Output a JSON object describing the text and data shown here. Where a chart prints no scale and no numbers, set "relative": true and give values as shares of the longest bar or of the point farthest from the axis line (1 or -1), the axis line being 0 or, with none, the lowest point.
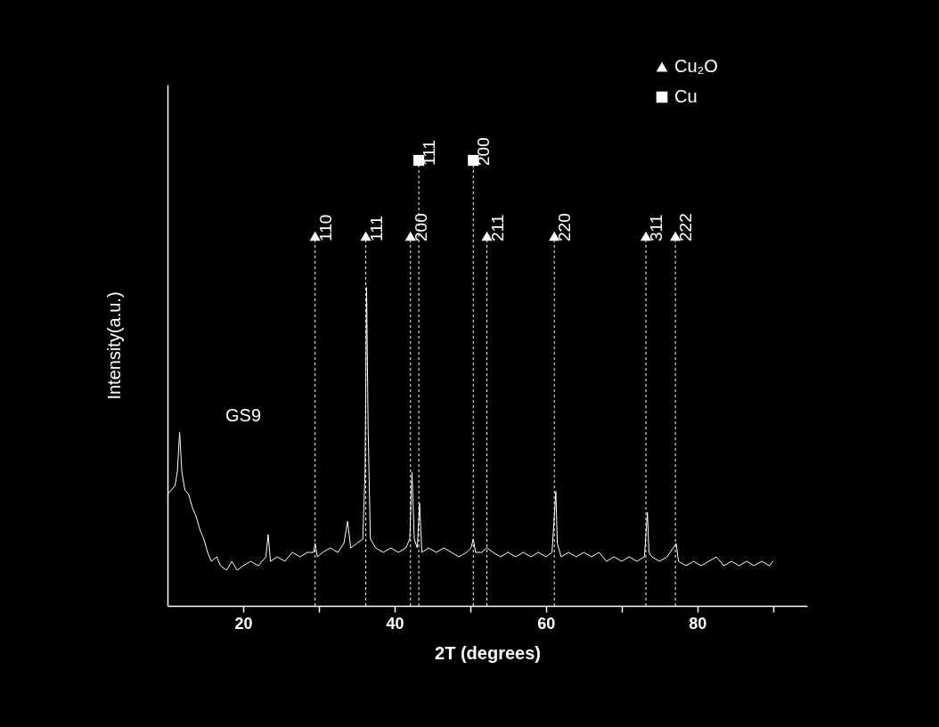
{
  "chart_data": {
    "type": "line",
    "relative": true,
    "xlabel": "2T (degrees)",
    "ylabel": "Intensity(a.u.)",
    "xlim": [
      10,
      94.5
    ],
    "xticks": [
      20,
      {
        "value": 30,
        "label": null
      },
      40,
      {
        "value": 50,
        "label": null
      },
      60,
      {
        "value": 70,
        "label": null
      },
      80,
      {
        "value": 90,
        "label": null
      }
    ],
    "tick_labels": "x",
    "legend": "top right",
    "annotations": [
      "GS9",
      {
        "text": "110",
        "x": 29.5,
        "y": 0.83
      },
      {
        "text": "111",
        "x": 36.2,
        "y": 0.83
      },
      {
        "text": "200",
        "x": 42.1,
        "y": 0.83
      },
      {
        "text": "211",
        "x": 52.2,
        "y": 0.83
      },
      {
        "text": "220",
        "x": 61.1,
        "y": 0.83
      },
      {
        "text": "311",
        "x": 73.2,
        "y": 0.83
      },
      {
        "text": "222",
        "x": 77.1,
        "y": 0.83
      },
      {
        "text": "111",
        "x": 43.2,
        "y": 1
      },
      {
        "text": "200",
        "x": 50.4,
        "y": 1
      }
    ],
    "x": [
      10,
      10.5,
      11,
      11.3,
      11.6,
      11.9,
      12.3,
      12.8,
      13.3,
      13.8,
      14.3,
      14.8,
      15.3,
      15.8,
      16.5,
      17,
      17.8,
      18.5,
      19.2,
      20,
      21,
      22,
      23,
      23.3,
      23.6,
      24.5,
      25.5,
      26.5,
      27.5,
      28.5,
      29.3,
      29.5,
      29.8,
      30.5,
      31.5,
      32.5,
      33.3,
      33.8,
      34.2,
      35,
      35.8,
      36.1,
      36.3,
      36.5,
      36.8,
      37.5,
      38.5,
      39.5,
      40.5,
      41.5,
      42,
      42.3,
      42.6,
      43,
      43.3,
      43.6,
      44.5,
      45.5,
      46.5,
      47.5,
      48.5,
      49.5,
      50.1,
      50.4,
      50.7,
      51.5,
      52.2,
      53,
      54,
      55,
      56,
      57,
      58,
      59,
      60,
      60.8,
      61.1,
      61.3,
      61.5,
      62,
      63,
      64,
      65,
      66,
      67,
      68,
      69,
      70,
      71,
      72,
      73,
      73.2,
      73.4,
      73.6,
      74,
      75,
      76,
      77.2,
      77.5,
      78.5,
      79.5,
      80.5,
      81.5,
      82.5,
      83.5,
      84.5,
      85.5,
      86.5,
      87.5,
      88.5,
      89.5,
      90
    ],
    "series": [
      {
        "type": "line",
        "color": "#ffffff",
        "values": [
          0.25,
          0.26,
          0.27,
          0.3,
          0.39,
          0.3,
          0.26,
          0.25,
          0.22,
          0.2,
          0.17,
          0.15,
          0.12,
          0.1,
          0.11,
          0.09,
          0.08,
          0.1,
          0.08,
          0.09,
          0.1,
          0.09,
          0.11,
          0.16,
          0.1,
          0.11,
          0.1,
          0.12,
          0.11,
          0.12,
          0.12,
          0.14,
          0.11,
          0.12,
          0.13,
          0.12,
          0.14,
          0.19,
          0.13,
          0.14,
          0.15,
          0.3,
          0.715,
          0.4,
          0.15,
          0.13,
          0.12,
          0.13,
          0.12,
          0.13,
          0.15,
          0.3,
          0.15,
          0.13,
          0.23,
          0.12,
          0.13,
          0.12,
          0.13,
          0.12,
          0.11,
          0.12,
          0.13,
          0.15,
          0.12,
          0.12,
          0.13,
          0.12,
          0.11,
          0.12,
          0.11,
          0.12,
          0.11,
          0.12,
          0.11,
          0.12,
          0.2,
          0.257,
          0.14,
          0.11,
          0.12,
          0.11,
          0.12,
          0.11,
          0.12,
          0.1,
          0.11,
          0.1,
          0.11,
          0.1,
          0.11,
          0.16,
          0.21,
          0.12,
          0.11,
          0.1,
          0.11,
          0.14,
          0.1,
          0.09,
          0.1,
          0.09,
          0.1,
          0.11,
          0.09,
          0.1,
          0.09,
          0.1,
          0.09,
          0.1,
          0.09,
          0.1
        ]
      },
      {
        "type": "lollipop",
        "name": "Cu₂O",
        "color": "#ffffff",
        "marker": "triangle",
        "line_style": "dashed",
        "x": [
          29.5,
          36.2,
          42.1,
          52.2,
          61.1,
          73.2,
          77.1
        ],
        "values": [
          0.83,
          0.83,
          0.83,
          0.83,
          0.83,
          0.83,
          0.83
        ]
      },
      {
        "type": "lollipop",
        "name": "Cu",
        "color": "#ffffff",
        "marker": "square",
        "line_style": "dashed",
        "x": [
          43.2,
          50.4
        ],
        "values": [
          1,
          1
        ]
      }
    ]
  }
}
